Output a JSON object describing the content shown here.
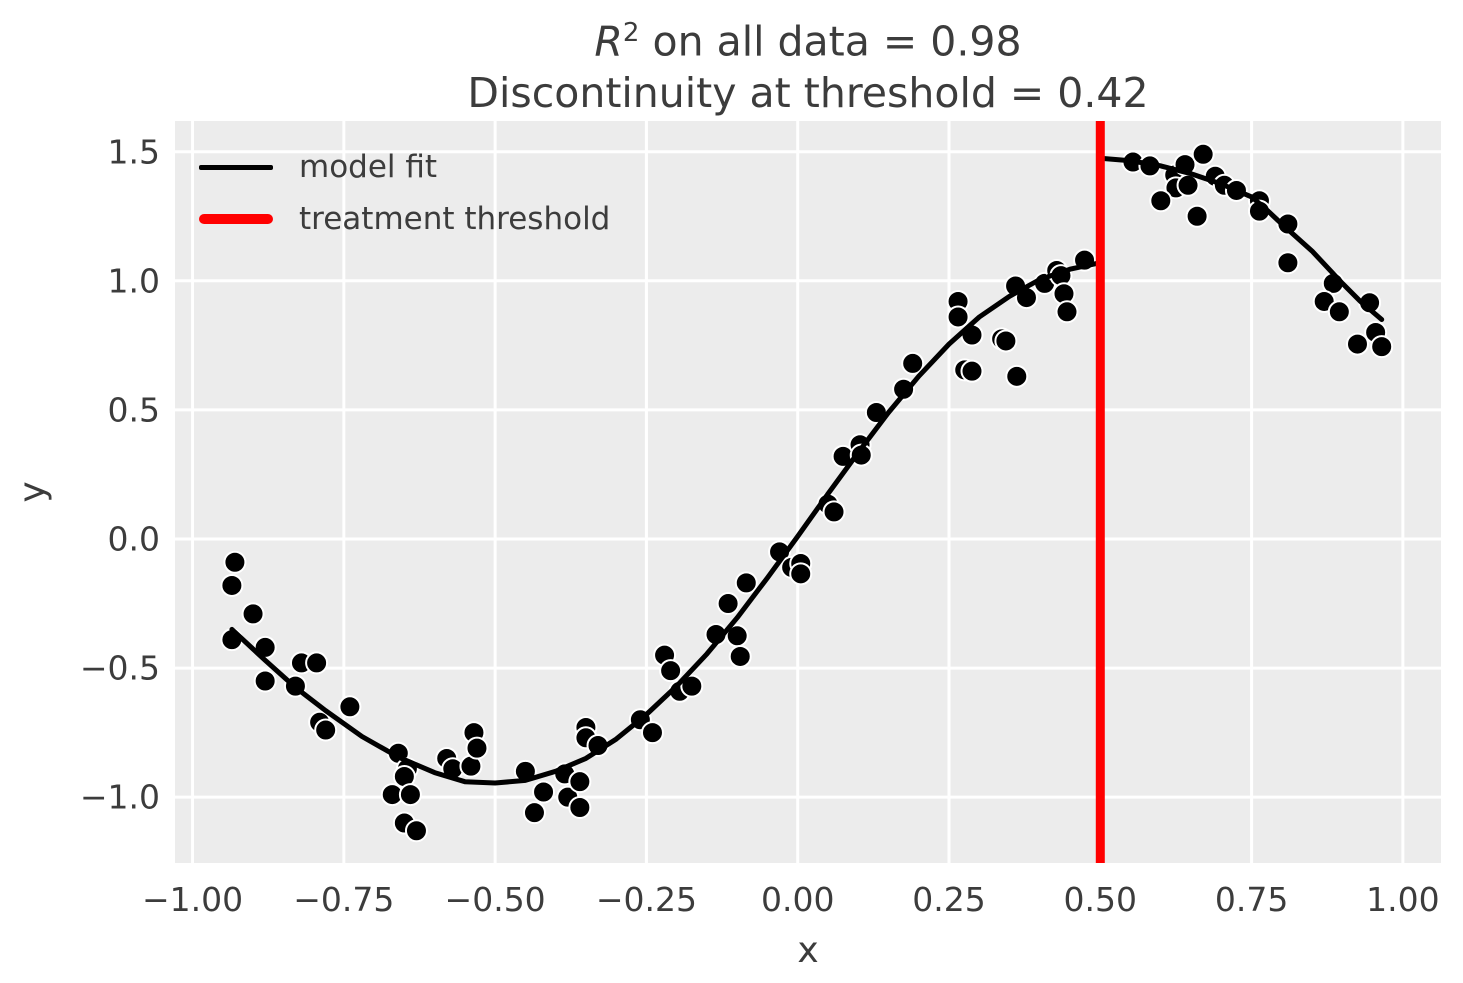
{
  "chart_data": {
    "type": "scatter",
    "title": {
      "r_symbol": "R",
      "r_exponent": "2",
      "line1_rest": " on all data = 0.98",
      "line2": "Discontinuity at threshold = 0.42",
      "r_squared_value": "0.98",
      "discontinuity_value": "0.42"
    },
    "xlabel": "x",
    "ylabel": "y",
    "xlim": [
      -1.029,
      1.063
    ],
    "ylim": [
      -1.255,
      1.619
    ],
    "grid": true,
    "legend_position": "upper left",
    "legend": [
      {
        "label": "model fit",
        "color": "#000000"
      },
      {
        "label": "treatment threshold",
        "color": "#ff0000"
      }
    ],
    "x_ticks": {
      "values": [
        -1.0,
        -0.75,
        -0.5,
        -0.25,
        0.0,
        0.25,
        0.5,
        0.75,
        1.0
      ],
      "labels": [
        "−1.00",
        "−0.75",
        "−0.50",
        "−0.25",
        "0.00",
        "0.25",
        "0.50",
        "0.75",
        "1.00"
      ]
    },
    "y_ticks": {
      "values": [
        -1.0,
        -0.5,
        0.0,
        0.5,
        1.0,
        1.5
      ],
      "labels": [
        "−1.0",
        "−0.5",
        "0.0",
        "0.5",
        "1.0",
        "1.5"
      ]
    },
    "threshold_x": 0.5,
    "colors": {
      "scatter": "#000000",
      "scatter_edge": "#ffffff",
      "fit_line": "#000000",
      "threshold_line": "#ff0000",
      "plot_background": "#ececec",
      "gridline": "#ffffff",
      "text": "#3c3c3c"
    },
    "model_fit_left": [
      [
        -0.935,
        -0.35
      ],
      [
        -0.88,
        -0.47
      ],
      [
        -0.83,
        -0.575
      ],
      [
        -0.78,
        -0.665
      ],
      [
        -0.72,
        -0.765
      ],
      [
        -0.66,
        -0.845
      ],
      [
        -0.6,
        -0.905
      ],
      [
        -0.55,
        -0.94
      ],
      [
        -0.5,
        -0.945
      ],
      [
        -0.45,
        -0.935
      ],
      [
        -0.4,
        -0.9
      ],
      [
        -0.35,
        -0.85
      ],
      [
        -0.3,
        -0.775
      ],
      [
        -0.25,
        -0.68
      ],
      [
        -0.2,
        -0.57
      ],
      [
        -0.15,
        -0.445
      ],
      [
        -0.1,
        -0.305
      ],
      [
        -0.05,
        -0.15
      ],
      [
        0.0,
        0.01
      ],
      [
        0.05,
        0.175
      ],
      [
        0.1,
        0.335
      ],
      [
        0.15,
        0.49
      ],
      [
        0.2,
        0.63
      ],
      [
        0.25,
        0.755
      ],
      [
        0.3,
        0.86
      ],
      [
        0.35,
        0.94
      ],
      [
        0.4,
        1.005
      ],
      [
        0.45,
        1.045
      ],
      [
        0.5,
        1.07
      ]
    ],
    "model_fit_right": [
      [
        0.5,
        1.475
      ],
      [
        0.55,
        1.465
      ],
      [
        0.6,
        1.445
      ],
      [
        0.65,
        1.415
      ],
      [
        0.7,
        1.375
      ],
      [
        0.75,
        1.325
      ],
      [
        0.775,
        1.275
      ],
      [
        0.8,
        1.22
      ],
      [
        0.85,
        1.115
      ],
      [
        0.9,
        0.99
      ],
      [
        0.93,
        0.92
      ],
      [
        0.965,
        0.85
      ]
    ],
    "points": [
      [
        -0.93,
        -0.09
      ],
      [
        -0.935,
        -0.18
      ],
      [
        -0.9,
        -0.29
      ],
      [
        -0.935,
        -0.39
      ],
      [
        -0.88,
        -0.42
      ],
      [
        -0.82,
        -0.48
      ],
      [
        -0.795,
        -0.48
      ],
      [
        -0.88,
        -0.55
      ],
      [
        -0.83,
        -0.57
      ],
      [
        -0.74,
        -0.65
      ],
      [
        -0.79,
        -0.71
      ],
      [
        -0.78,
        -0.74
      ],
      [
        -0.66,
        -0.83
      ],
      [
        -0.645,
        -0.89
      ],
      [
        -0.65,
        -0.92
      ],
      [
        -0.58,
        -0.85
      ],
      [
        -0.57,
        -0.89
      ],
      [
        -0.54,
        -0.88
      ],
      [
        -0.535,
        -0.75
      ],
      [
        -0.53,
        -0.81
      ],
      [
        -0.67,
        -0.99
      ],
      [
        -0.64,
        -0.99
      ],
      [
        -0.65,
        -1.1
      ],
      [
        -0.63,
        -1.13
      ],
      [
        -0.45,
        -0.9
      ],
      [
        -0.42,
        -0.98
      ],
      [
        -0.435,
        -1.06
      ],
      [
        -0.385,
        -0.91
      ],
      [
        -0.38,
        -1.0
      ],
      [
        -0.36,
        -0.94
      ],
      [
        -0.36,
        -1.04
      ],
      [
        -0.35,
        -0.73
      ],
      [
        -0.35,
        -0.77
      ],
      [
        -0.33,
        -0.8
      ],
      [
        -0.26,
        -0.7
      ],
      [
        -0.24,
        -0.75
      ],
      [
        -0.22,
        -0.45
      ],
      [
        -0.21,
        -0.51
      ],
      [
        -0.195,
        -0.59
      ],
      [
        -0.175,
        -0.57
      ],
      [
        -0.135,
        -0.37
      ],
      [
        -0.115,
        -0.25
      ],
      [
        -0.1,
        -0.375
      ],
      [
        -0.095,
        -0.455
      ],
      [
        -0.085,
        -0.17
      ],
      [
        -0.03,
        -0.05
      ],
      [
        -0.01,
        -0.11
      ],
      [
        0.005,
        -0.095
      ],
      [
        0.005,
        -0.135
      ],
      [
        0.05,
        0.135
      ],
      [
        0.06,
        0.105
      ],
      [
        0.075,
        0.32
      ],
      [
        0.103,
        0.365
      ],
      [
        0.105,
        0.325
      ],
      [
        0.13,
        0.49
      ],
      [
        0.175,
        0.58
      ],
      [
        0.19,
        0.68
      ],
      [
        0.265,
        0.92
      ],
      [
        0.265,
        0.86
      ],
      [
        0.288,
        0.79
      ],
      [
        0.276,
        0.655
      ],
      [
        0.288,
        0.65
      ],
      [
        0.337,
        0.775
      ],
      [
        0.344,
        0.767
      ],
      [
        0.36,
        0.98
      ],
      [
        0.378,
        0.935
      ],
      [
        0.362,
        0.63
      ],
      [
        0.408,
        0.99
      ],
      [
        0.428,
        1.04
      ],
      [
        0.435,
        1.02
      ],
      [
        0.44,
        0.95
      ],
      [
        0.445,
        0.88
      ],
      [
        0.474,
        1.08
      ],
      [
        0.554,
        1.46
      ],
      [
        0.582,
        1.445
      ],
      [
        0.623,
        1.41
      ],
      [
        0.625,
        1.36
      ],
      [
        0.64,
        1.45
      ],
      [
        0.645,
        1.37
      ],
      [
        0.67,
        1.49
      ],
      [
        0.6,
        1.31
      ],
      [
        0.66,
        1.25
      ],
      [
        0.69,
        1.405
      ],
      [
        0.705,
        1.37
      ],
      [
        0.725,
        1.35
      ],
      [
        0.763,
        1.31
      ],
      [
        0.763,
        1.27
      ],
      [
        0.81,
        1.22
      ],
      [
        0.81,
        1.07
      ],
      [
        0.885,
        0.99
      ],
      [
        0.87,
        0.92
      ],
      [
        0.895,
        0.88
      ],
      [
        0.945,
        0.915
      ],
      [
        0.955,
        0.8
      ],
      [
        0.925,
        0.755
      ],
      [
        0.965,
        0.745
      ]
    ]
  }
}
